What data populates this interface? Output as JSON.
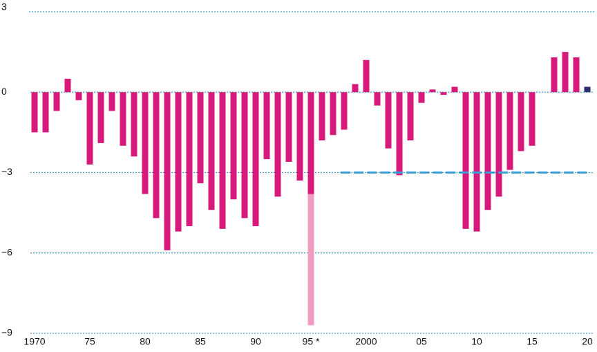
{
  "chart_data": {
    "type": "bar",
    "x": [
      1970,
      1971,
      1972,
      1973,
      1974,
      1975,
      1976,
      1977,
      1978,
      1979,
      1980,
      1981,
      1982,
      1983,
      1984,
      1985,
      1986,
      1987,
      1988,
      1989,
      1990,
      1991,
      1992,
      1993,
      1994,
      1995,
      1996,
      1997,
      1998,
      1999,
      2000,
      2001,
      2002,
      2003,
      2004,
      2005,
      2006,
      2007,
      2008,
      2009,
      2010,
      2011,
      2012,
      2013,
      2014,
      2015,
      2016,
      2017,
      2018,
      2019,
      2020
    ],
    "series": [
      {
        "color": "#d6197a",
        "values": [
          -1.5,
          -1.5,
          -0.7,
          0.5,
          -0.3,
          -2.7,
          -1.9,
          -0.7,
          -2.0,
          -2.4,
          -3.8,
          -4.7,
          -5.9,
          -5.2,
          -5.0,
          -3.4,
          -4.4,
          -5.1,
          -4.0,
          -4.7,
          -5.0,
          -2.5,
          -3.9,
          -2.6,
          -3.3,
          -3.8,
          -1.8,
          -1.6,
          -1.4,
          0.3,
          1.2,
          -0.5,
          -2.1,
          -3.1,
          -1.8,
          -0.4,
          0.1,
          -0.1,
          0.2,
          -5.1,
          -5.2,
          -4.4,
          -3.9,
          -2.9,
          -2.2,
          -2.0,
          null,
          1.3,
          1.5,
          1.3,
          null
        ]
      },
      {
        "color": "#f19cc1",
        "values": [
          null,
          null,
          null,
          null,
          null,
          null,
          null,
          null,
          null,
          null,
          null,
          null,
          null,
          null,
          null,
          null,
          null,
          null,
          null,
          null,
          null,
          null,
          null,
          null,
          null,
          -4.9,
          null,
          null,
          null,
          null,
          null,
          null,
          null,
          null,
          null,
          null,
          null,
          null,
          null,
          null,
          null,
          null,
          null,
          null,
          null,
          null,
          null,
          null,
          null,
          null,
          null
        ]
      },
      {
        "color": "#2b2e6e",
        "values": [
          null,
          null,
          null,
          null,
          null,
          null,
          null,
          null,
          null,
          null,
          null,
          null,
          null,
          null,
          null,
          null,
          null,
          null,
          null,
          null,
          null,
          null,
          null,
          null,
          null,
          null,
          null,
          null,
          null,
          null,
          null,
          null,
          null,
          null,
          null,
          null,
          null,
          null,
          null,
          null,
          null,
          null,
          null,
          null,
          null,
          null,
          null,
          null,
          null,
          null,
          0.2
        ]
      }
    ],
    "xlim": [
      1969.5,
      2020.5
    ],
    "xticks": [
      1970,
      {
        "value": 1975,
        "label": "75"
      },
      {
        "value": 1980,
        "label": "80"
      },
      {
        "value": 1985,
        "label": "85"
      },
      {
        "value": 1990,
        "label": "90"
      },
      {
        "value": 1995,
        "label": "95 *"
      },
      2000,
      {
        "value": 2005,
        "label": "05"
      },
      {
        "value": 2010,
        "label": "10"
      },
      {
        "value": 2015,
        "label": "15"
      },
      {
        "value": 2020,
        "label": "20"
      }
    ],
    "ylim": [
      -9,
      3
    ],
    "yticks": [
      3,
      0,
      {
        "value": -3,
        "label": "−3"
      },
      {
        "value": -6,
        "label": "−6"
      },
      {
        "value": -9,
        "label": "−9"
      }
    ],
    "grid": true,
    "grid_color": "#3a9fd0",
    "reference_line": {
      "value": -3,
      "x": [
        1997.7,
        2020
      ],
      "color": "#3a9fd6"
    }
  }
}
